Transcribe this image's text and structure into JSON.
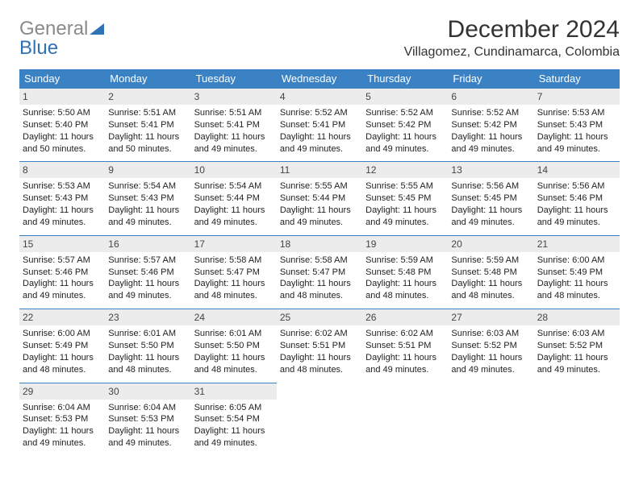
{
  "brand": {
    "part1": "General",
    "part2": "Blue"
  },
  "title": "December 2024",
  "location": "Villagomez, Cundinamarca, Colombia",
  "colors": {
    "header_bg": "#3b82c4",
    "header_text": "#ffffff",
    "daynum_bg": "#ececec",
    "row_divider": "#3b82c4",
    "brand_gray": "#8a8a8a",
    "brand_blue": "#2f73b5"
  },
  "typography": {
    "title_fontsize": 30,
    "location_fontsize": 16,
    "dayheader_fontsize": 13,
    "cell_fontsize": 11
  },
  "days": [
    "Sunday",
    "Monday",
    "Tuesday",
    "Wednesday",
    "Thursday",
    "Friday",
    "Saturday"
  ],
  "weeks": [
    [
      {
        "n": "1",
        "sr": "Sunrise: 5:50 AM",
        "ss": "Sunset: 5:40 PM",
        "dl": "Daylight: 11 hours and 50 minutes."
      },
      {
        "n": "2",
        "sr": "Sunrise: 5:51 AM",
        "ss": "Sunset: 5:41 PM",
        "dl": "Daylight: 11 hours and 50 minutes."
      },
      {
        "n": "3",
        "sr": "Sunrise: 5:51 AM",
        "ss": "Sunset: 5:41 PM",
        "dl": "Daylight: 11 hours and 49 minutes."
      },
      {
        "n": "4",
        "sr": "Sunrise: 5:52 AM",
        "ss": "Sunset: 5:41 PM",
        "dl": "Daylight: 11 hours and 49 minutes."
      },
      {
        "n": "5",
        "sr": "Sunrise: 5:52 AM",
        "ss": "Sunset: 5:42 PM",
        "dl": "Daylight: 11 hours and 49 minutes."
      },
      {
        "n": "6",
        "sr": "Sunrise: 5:52 AM",
        "ss": "Sunset: 5:42 PM",
        "dl": "Daylight: 11 hours and 49 minutes."
      },
      {
        "n": "7",
        "sr": "Sunrise: 5:53 AM",
        "ss": "Sunset: 5:43 PM",
        "dl": "Daylight: 11 hours and 49 minutes."
      }
    ],
    [
      {
        "n": "8",
        "sr": "Sunrise: 5:53 AM",
        "ss": "Sunset: 5:43 PM",
        "dl": "Daylight: 11 hours and 49 minutes."
      },
      {
        "n": "9",
        "sr": "Sunrise: 5:54 AM",
        "ss": "Sunset: 5:43 PM",
        "dl": "Daylight: 11 hours and 49 minutes."
      },
      {
        "n": "10",
        "sr": "Sunrise: 5:54 AM",
        "ss": "Sunset: 5:44 PM",
        "dl": "Daylight: 11 hours and 49 minutes."
      },
      {
        "n": "11",
        "sr": "Sunrise: 5:55 AM",
        "ss": "Sunset: 5:44 PM",
        "dl": "Daylight: 11 hours and 49 minutes."
      },
      {
        "n": "12",
        "sr": "Sunrise: 5:55 AM",
        "ss": "Sunset: 5:45 PM",
        "dl": "Daylight: 11 hours and 49 minutes."
      },
      {
        "n": "13",
        "sr": "Sunrise: 5:56 AM",
        "ss": "Sunset: 5:45 PM",
        "dl": "Daylight: 11 hours and 49 minutes."
      },
      {
        "n": "14",
        "sr": "Sunrise: 5:56 AM",
        "ss": "Sunset: 5:46 PM",
        "dl": "Daylight: 11 hours and 49 minutes."
      }
    ],
    [
      {
        "n": "15",
        "sr": "Sunrise: 5:57 AM",
        "ss": "Sunset: 5:46 PM",
        "dl": "Daylight: 11 hours and 49 minutes."
      },
      {
        "n": "16",
        "sr": "Sunrise: 5:57 AM",
        "ss": "Sunset: 5:46 PM",
        "dl": "Daylight: 11 hours and 49 minutes."
      },
      {
        "n": "17",
        "sr": "Sunrise: 5:58 AM",
        "ss": "Sunset: 5:47 PM",
        "dl": "Daylight: 11 hours and 48 minutes."
      },
      {
        "n": "18",
        "sr": "Sunrise: 5:58 AM",
        "ss": "Sunset: 5:47 PM",
        "dl": "Daylight: 11 hours and 48 minutes."
      },
      {
        "n": "19",
        "sr": "Sunrise: 5:59 AM",
        "ss": "Sunset: 5:48 PM",
        "dl": "Daylight: 11 hours and 48 minutes."
      },
      {
        "n": "20",
        "sr": "Sunrise: 5:59 AM",
        "ss": "Sunset: 5:48 PM",
        "dl": "Daylight: 11 hours and 48 minutes."
      },
      {
        "n": "21",
        "sr": "Sunrise: 6:00 AM",
        "ss": "Sunset: 5:49 PM",
        "dl": "Daylight: 11 hours and 48 minutes."
      }
    ],
    [
      {
        "n": "22",
        "sr": "Sunrise: 6:00 AM",
        "ss": "Sunset: 5:49 PM",
        "dl": "Daylight: 11 hours and 48 minutes."
      },
      {
        "n": "23",
        "sr": "Sunrise: 6:01 AM",
        "ss": "Sunset: 5:50 PM",
        "dl": "Daylight: 11 hours and 48 minutes."
      },
      {
        "n": "24",
        "sr": "Sunrise: 6:01 AM",
        "ss": "Sunset: 5:50 PM",
        "dl": "Daylight: 11 hours and 48 minutes."
      },
      {
        "n": "25",
        "sr": "Sunrise: 6:02 AM",
        "ss": "Sunset: 5:51 PM",
        "dl": "Daylight: 11 hours and 48 minutes."
      },
      {
        "n": "26",
        "sr": "Sunrise: 6:02 AM",
        "ss": "Sunset: 5:51 PM",
        "dl": "Daylight: 11 hours and 49 minutes."
      },
      {
        "n": "27",
        "sr": "Sunrise: 6:03 AM",
        "ss": "Sunset: 5:52 PM",
        "dl": "Daylight: 11 hours and 49 minutes."
      },
      {
        "n": "28",
        "sr": "Sunrise: 6:03 AM",
        "ss": "Sunset: 5:52 PM",
        "dl": "Daylight: 11 hours and 49 minutes."
      }
    ],
    [
      {
        "n": "29",
        "sr": "Sunrise: 6:04 AM",
        "ss": "Sunset: 5:53 PM",
        "dl": "Daylight: 11 hours and 49 minutes."
      },
      {
        "n": "30",
        "sr": "Sunrise: 6:04 AM",
        "ss": "Sunset: 5:53 PM",
        "dl": "Daylight: 11 hours and 49 minutes."
      },
      {
        "n": "31",
        "sr": "Sunrise: 6:05 AM",
        "ss": "Sunset: 5:54 PM",
        "dl": "Daylight: 11 hours and 49 minutes."
      },
      null,
      null,
      null,
      null
    ]
  ]
}
